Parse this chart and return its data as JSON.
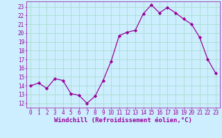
{
  "x": [
    0,
    1,
    2,
    3,
    4,
    5,
    6,
    7,
    8,
    9,
    10,
    11,
    12,
    13,
    14,
    15,
    16,
    17,
    18,
    19,
    20,
    21,
    22,
    23
  ],
  "y": [
    14.0,
    14.3,
    13.7,
    14.8,
    14.6,
    13.1,
    12.9,
    12.0,
    12.8,
    14.6,
    16.8,
    19.7,
    20.1,
    20.3,
    22.2,
    23.2,
    22.3,
    22.9,
    22.3,
    21.6,
    21.0,
    19.5,
    17.0,
    15.4
  ],
  "line_color": "#990099",
  "marker": "D",
  "markersize": 2.2,
  "linewidth": 0.9,
  "xlabel": "Windchill (Refroidissement éolien,°C)",
  "xlabel_fontsize": 6.5,
  "bg_color": "#cceeff",
  "grid_color": "#aaddcc",
  "ylim": [
    11.5,
    23.6
  ],
  "xlim": [
    -0.5,
    23.5
  ],
  "yticks": [
    12,
    13,
    14,
    15,
    16,
    17,
    18,
    19,
    20,
    21,
    22,
    23
  ],
  "xticks": [
    0,
    1,
    2,
    3,
    4,
    5,
    6,
    7,
    8,
    9,
    10,
    11,
    12,
    13,
    14,
    15,
    16,
    17,
    18,
    19,
    20,
    21,
    22,
    23
  ],
  "tick_color": "#990099",
  "tick_fontsize": 5.5,
  "ylabel_fontsize": 5.5
}
